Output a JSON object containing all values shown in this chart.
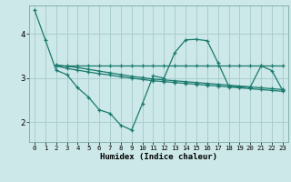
{
  "title": "",
  "xlabel": "Humidex (Indice chaleur)",
  "ylabel": "",
  "bg_color": "#cce8e8",
  "grid_color": "#aacece",
  "line_color": "#1a7a6e",
  "marker_color": "#1a7a6e",
  "xlim": [
    -0.5,
    23.5
  ],
  "ylim": [
    1.55,
    4.65
  ],
  "yticks": [
    2,
    3,
    4
  ],
  "xticks": [
    0,
    1,
    2,
    3,
    4,
    5,
    6,
    7,
    8,
    9,
    10,
    11,
    12,
    13,
    14,
    15,
    16,
    17,
    18,
    19,
    20,
    21,
    22,
    23
  ],
  "series": [
    {
      "x": [
        0,
        1,
        2,
        3,
        4,
        5,
        6,
        7,
        8,
        9,
        10,
        11,
        12,
        13,
        14,
        15,
        16,
        17,
        18,
        19,
        20,
        21,
        22,
        23
      ],
      "y": [
        4.55,
        3.87,
        3.18,
        3.08,
        2.78,
        2.57,
        2.28,
        2.2,
        1.93,
        1.82,
        2.42,
        3.05,
        3.0,
        3.58,
        3.87,
        3.88,
        3.85,
        3.35,
        2.82,
        2.8,
        2.8,
        3.28,
        3.17,
        2.72
      ]
    },
    {
      "x": [
        2,
        3,
        4,
        5,
        6,
        7,
        8,
        9,
        10,
        11,
        12,
        13,
        14,
        15,
        16,
        17,
        18,
        19,
        20,
        21,
        22,
        23
      ],
      "y": [
        3.28,
        3.28,
        3.28,
        3.28,
        3.28,
        3.28,
        3.28,
        3.28,
        3.28,
        3.28,
        3.28,
        3.28,
        3.28,
        3.28,
        3.28,
        3.28,
        3.28,
        3.28,
        3.28,
        3.28,
        3.28,
        3.28
      ]
    },
    {
      "x": [
        2,
        3,
        4,
        5,
        6,
        7,
        8,
        9,
        10,
        11,
        12,
        13,
        14,
        15,
        16,
        17,
        18,
        19,
        20,
        21,
        22,
        23
      ],
      "y": [
        3.28,
        3.22,
        3.18,
        3.14,
        3.1,
        3.07,
        3.03,
        3.0,
        2.97,
        2.94,
        2.92,
        2.9,
        2.88,
        2.86,
        2.84,
        2.82,
        2.8,
        2.78,
        2.76,
        2.74,
        2.72,
        2.7
      ]
    },
    {
      "x": [
        2,
        3,
        4,
        5,
        6,
        7,
        8,
        9,
        10,
        11,
        12,
        13,
        14,
        15,
        16,
        17,
        18,
        19,
        20,
        21,
        22,
        23
      ],
      "y": [
        3.3,
        3.27,
        3.24,
        3.2,
        3.16,
        3.12,
        3.08,
        3.04,
        3.01,
        2.98,
        2.96,
        2.94,
        2.92,
        2.9,
        2.88,
        2.86,
        2.84,
        2.82,
        2.8,
        2.78,
        2.76,
        2.74
      ]
    }
  ]
}
